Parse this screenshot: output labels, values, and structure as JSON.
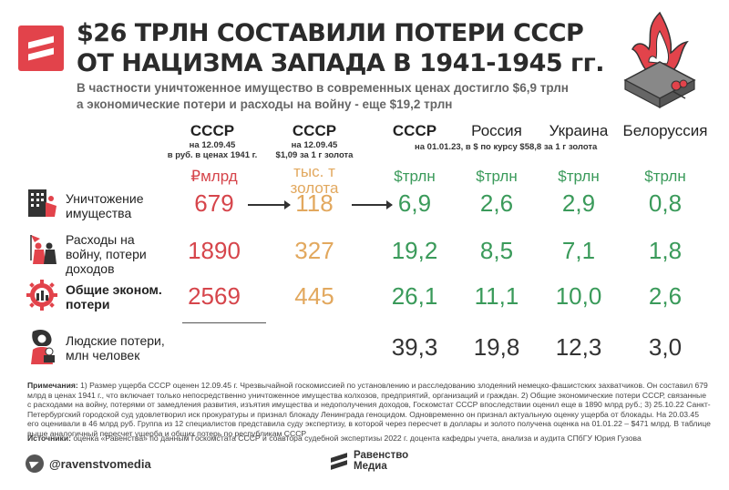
{
  "header": {
    "title_line1": "$26 ТРЛН СОСТАВИЛИ ПОТЕРИ СССР",
    "title_line2": "ОТ НАЦИЗМА ЗАПАДА В 1941-1945 гг.",
    "subtitle_line1": "В частности уничтоженное имущество в современных ценах достигло $6,9 трлн",
    "subtitle_line2": "а экономические потери и расходы на войну - еще $19,2 трлн"
  },
  "columns": {
    "ussr_rub": {
      "name": "СССР",
      "sub1": "на 12.09.45",
      "sub2": "в руб. в ценах 1941 г."
    },
    "ussr_gold": {
      "name": "СССР",
      "sub1": "на 12.09.45",
      "sub2": "$1,09 за 1 г золота"
    },
    "ussr_now": {
      "name": "СССР"
    },
    "russia": {
      "name": "Россия"
    },
    "ukraine": {
      "name": "Украина"
    },
    "belarus": {
      "name": "Белоруссия"
    },
    "now_note": "на 01.01.23, в $ по курсу $58,8 за 1 г золота"
  },
  "units": {
    "rub": "₽млрд",
    "gold_line1": "тыс. т",
    "gold_line2": "золота",
    "usd": "$трлн"
  },
  "rows": [
    {
      "label_line1": "Уничтожение",
      "label_line2": "имущества",
      "icon": "building-destroyed-icon",
      "values": [
        "679",
        "118",
        "6,9",
        "2,6",
        "2,9",
        "0,8"
      ]
    },
    {
      "label_line1": "Расходы на",
      "label_line2": "войну, потери",
      "label_line3": "доходов",
      "icon": "soldiers-icon",
      "values": [
        "1890",
        "327",
        "19,2",
        "8,5",
        "7,1",
        "1,8"
      ]
    },
    {
      "label_line1": "Общие эконом.",
      "label_line2": "потери",
      "icon": "gear-factory-icon",
      "values": [
        "2569",
        "445",
        "26,1",
        "11,1",
        "10,0",
        "2,6"
      ]
    },
    {
      "label_line1": "Людские потери,",
      "label_line2": "млн человек",
      "icon": "mother-child-icon",
      "values": [
        "39,3",
        "19,8",
        "12,3",
        "3,0"
      ]
    }
  ],
  "notes": {
    "label": "Примечания:",
    "text": " 1) Размер ущерба СССР оценен 12.09.45 г. Чрезвычайной госкомиссией по установлению и расследованию злодеяний немецко-фашистских захватчиков. Он составил 679 млрд в ценах 1941 г., что включает только непосредственно уничтоженное имущества колхозов, предприятий, организаций и граждан. 2) Общие экономические потери СССР, связанные с расходами на войну, потерями от замедления развития, изъятия имущества и недополучения доходов, Госкомстат СССР впоследствии оценил еще в 1890 млрд руб.; 3) 25.10.22 Санкт-Петербургский городской суд удовлетворил иск прокуратуры и признал блокаду Ленинграда геноцидом. Одновременно он признал актуальную оценку ущерба от блокады. На 20.03.45 его оценивали в 46 млрд руб. Группа из 12 специалистов представила суду экспертизу, в которой через пересчет в доллары и золото получена оценка на 01.01.22 – $471 млрд. В таблице выше аналогичный пересчет ущерба и общих потерь по республикам СССР"
  },
  "sources": {
    "label": "Источники:",
    "text": " оценка «Равенства» по данным Госкомстата СССР и соавтора судебной экспертизы 2022 г. доцента кафедры учета, анализа и аудита СПбГУ Юрия Гузова"
  },
  "footer": {
    "handle": "@ravenstvomedia",
    "brand_line1": "Равенство",
    "brand_line2": "Медиа"
  },
  "colors": {
    "red": "#d6454b",
    "gold": "#e2a85e",
    "green": "#3a9a5a",
    "logo": "#e2434b"
  }
}
